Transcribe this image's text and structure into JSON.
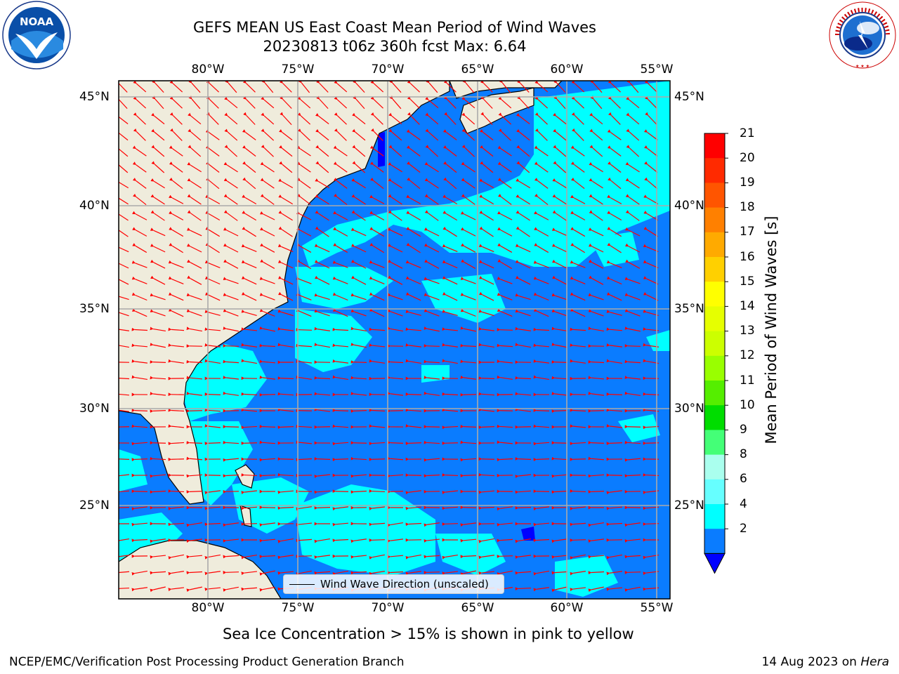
{
  "header": {
    "title_line1": "GEFS MEAN US East Coast Mean Period of Wind Waves",
    "title_line2": "20230813 t06z 360h fcst   Max: 6.64"
  },
  "logos": {
    "left": "NOAA",
    "right_text": "NATIONAL WEATHER SERVICE"
  },
  "map": {
    "lon_labels": [
      "80°W",
      "75°W",
      "70°W",
      "65°W",
      "60°W",
      "55°W"
    ],
    "lat_labels": [
      "45°N",
      "40°N",
      "35°N",
      "30°N",
      "25°N"
    ],
    "legend_label": "Wind Wave Direction (unscaled)",
    "colors": {
      "land": "#efecdc",
      "wave_2_4": "#0a7cff",
      "wave_4_6": "#00ffff",
      "below_min": "#0000ff",
      "arrow": "#ff0000",
      "grid": "#aaaaaa"
    }
  },
  "colorbar": {
    "label": "Mean Period of Wind Waves [s]",
    "ticks": [
      "21",
      "20",
      "19",
      "18",
      "17",
      "16",
      "15",
      "14",
      "13",
      "12",
      "11",
      "10",
      "9",
      "8",
      "6",
      "4",
      "2"
    ],
    "colors": [
      "#ff0000",
      "#ff2a00",
      "#ff5500",
      "#ff8000",
      "#ffaa00",
      "#ffd000",
      "#ffff00",
      "#e6ff00",
      "#ccff00",
      "#99ff00",
      "#55ee00",
      "#00dd00",
      "#44ff77",
      "#aaffee",
      "#66ffff",
      "#00ffff",
      "#0a7cff",
      "#0000ff"
    ]
  },
  "notes": {
    "sea_ice": "Sea Ice Concentration > 15% is shown in pink to yellow"
  },
  "footer": {
    "left": "NCEP/EMC/Verification Post Processing Product Generation Branch",
    "right_date": "14 Aug 2023 on",
    "right_host": "Hera"
  }
}
